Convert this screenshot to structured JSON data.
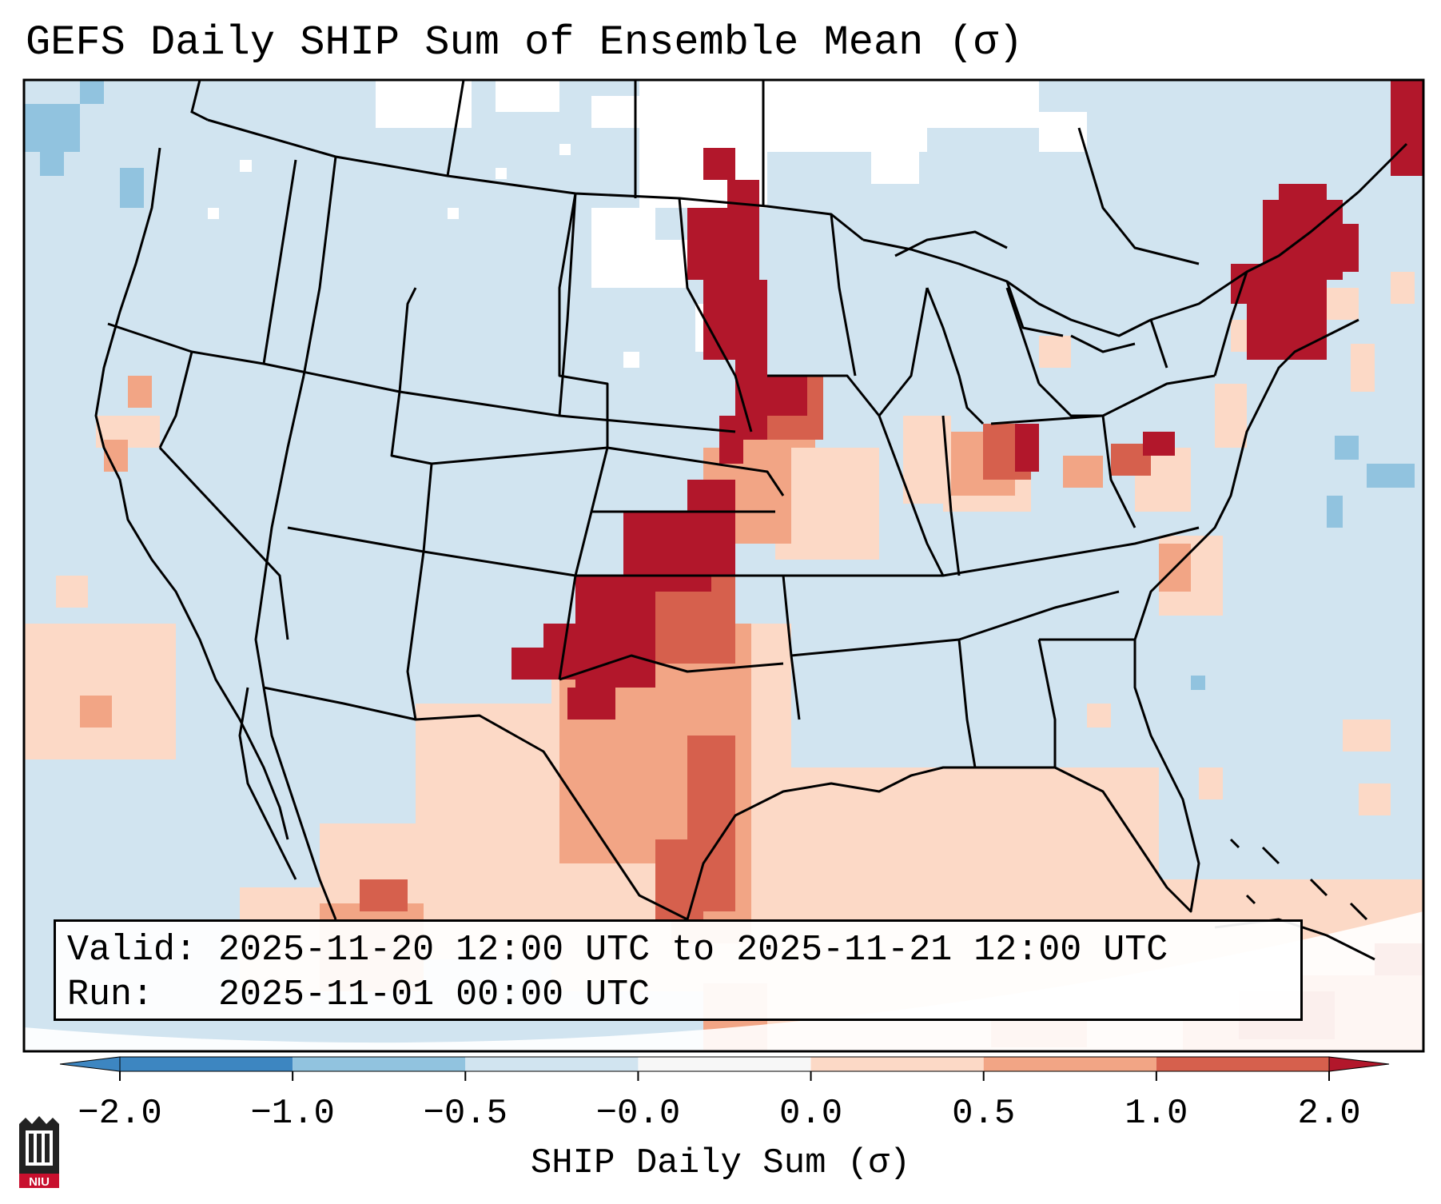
{
  "title": "GEFS Daily SHIP Sum of Ensemble Mean (σ)",
  "info": {
    "valid_label": "Valid:",
    "valid_value": "2025-11-20 12:00 UTC to 2025-11-21 12:00 UTC",
    "run_label": "Run:",
    "run_value": "2025-11-01 00:00 UTC"
  },
  "colorbar": {
    "label": "SHIP Daily Sum (σ)",
    "ticks": [
      "−2.0",
      "−1.0",
      "−0.5",
      "−0.0",
      "0.0",
      "0.5",
      "1.0",
      "2.0"
    ],
    "colors": [
      "#3d86c1",
      "#91c3df",
      "#d1e4f0",
      "#f7f7f7",
      "#fcd9c6",
      "#f2a585",
      "#d6604d",
      "#b2172b"
    ]
  },
  "map": {
    "background_color": "#d1e4f0",
    "legend_colors": {
      "neutral": "#ffffff",
      "slight_positive": "#fcd9c6",
      "moderate_positive": "#f2a585",
      "strong_positive": "#d6604d",
      "extreme_positive": "#b2172b",
      "slight_negative": "#91c3df"
    }
  },
  "logo": {
    "text": "NIU",
    "color": "#c8102e"
  }
}
